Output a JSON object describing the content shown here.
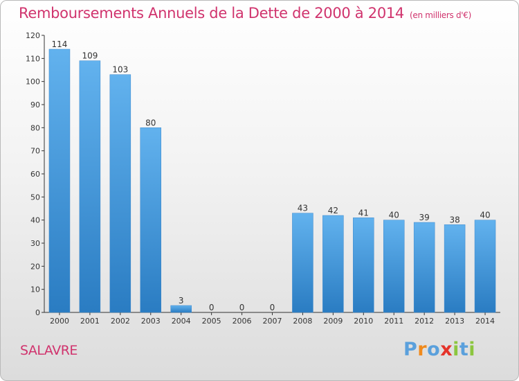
{
  "header": {
    "title": "Remboursements Annuels de la Dette de 2000 à 2014",
    "unit": "(en milliers d'€)"
  },
  "commune": "SALAVRE",
  "logo": {
    "text": "Proxiti"
  },
  "colors": {
    "title": "#d0336d",
    "bar_top": "#62b2ee",
    "bar_bottom": "#2a7cc2"
  },
  "chart_data": {
    "type": "bar",
    "title": "Remboursements Annuels de la Dette de 2000 à 2014",
    "subtitle": "(en milliers d'€)",
    "categories": [
      "2000",
      "2001",
      "2002",
      "2003",
      "2004",
      "2005",
      "2006",
      "2007",
      "2008",
      "2009",
      "2010",
      "2011",
      "2012",
      "2013",
      "2014"
    ],
    "values": [
      114,
      109,
      103,
      80,
      3,
      0,
      0,
      0,
      43,
      42,
      41,
      40,
      39,
      38,
      40
    ],
    "ylim": [
      0,
      120
    ],
    "yticks": [
      0,
      10,
      20,
      30,
      40,
      50,
      60,
      70,
      80,
      90,
      100,
      110,
      120
    ],
    "grid": false,
    "legend": "none"
  }
}
